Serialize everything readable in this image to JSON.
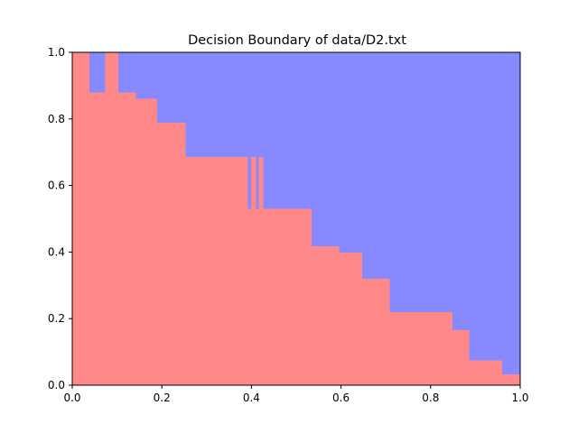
{
  "chart_data": {
    "type": "heatmap",
    "title": "Decision Boundary of data/D2.txt",
    "xlabel": "",
    "ylabel": "",
    "xlim": [
      0,
      1
    ],
    "ylim": [
      0,
      1
    ],
    "grid": false,
    "colors": {
      "upper_region": "#8888ff",
      "lower_region": "#ff8888"
    },
    "x_ticks": [
      {
        "value": 0.0,
        "label": "0.0"
      },
      {
        "value": 0.2,
        "label": "0.2"
      },
      {
        "value": 0.4,
        "label": "0.4"
      },
      {
        "value": 0.6,
        "label": "0.6"
      },
      {
        "value": 0.8,
        "label": "0.8"
      },
      {
        "value": 1.0,
        "label": "1.0"
      }
    ],
    "y_ticks": [
      {
        "value": 0.0,
        "label": "0.0"
      },
      {
        "value": 0.2,
        "label": "0.2"
      },
      {
        "value": 0.4,
        "label": "0.4"
      },
      {
        "value": 0.6,
        "label": "0.6"
      },
      {
        "value": 0.8,
        "label": "0.8"
      },
      {
        "value": 1.0,
        "label": "1.0"
      }
    ],
    "lower_region_boundary": [
      {
        "x0": 0.0,
        "x1": 0.037,
        "y": 1.0
      },
      {
        "x0": 0.037,
        "x1": 0.074,
        "y": 0.88
      },
      {
        "x0": 0.074,
        "x1": 0.102,
        "y": 1.0
      },
      {
        "x0": 0.102,
        "x1": 0.141,
        "y": 0.88
      },
      {
        "x0": 0.141,
        "x1": 0.188,
        "y": 0.86
      },
      {
        "x0": 0.188,
        "x1": 0.252,
        "y": 0.788
      },
      {
        "x0": 0.252,
        "x1": 0.391,
        "y": 0.685
      },
      {
        "x0": 0.391,
        "x1": 0.399,
        "y": 0.53
      },
      {
        "x0": 0.399,
        "x1": 0.409,
        "y": 0.685
      },
      {
        "x0": 0.409,
        "x1": 0.416,
        "y": 0.53
      },
      {
        "x0": 0.416,
        "x1": 0.425,
        "y": 0.685
      },
      {
        "x0": 0.425,
        "x1": 0.533,
        "y": 0.53
      },
      {
        "x0": 0.533,
        "x1": 0.595,
        "y": 0.418
      },
      {
        "x0": 0.595,
        "x1": 0.646,
        "y": 0.398
      },
      {
        "x0": 0.646,
        "x1": 0.707,
        "y": 0.32
      },
      {
        "x0": 0.707,
        "x1": 0.848,
        "y": 0.22
      },
      {
        "x0": 0.848,
        "x1": 0.885,
        "y": 0.165
      },
      {
        "x0": 0.885,
        "x1": 0.958,
        "y": 0.075
      },
      {
        "x0": 0.958,
        "x1": 1.0,
        "y": 0.032
      }
    ]
  }
}
